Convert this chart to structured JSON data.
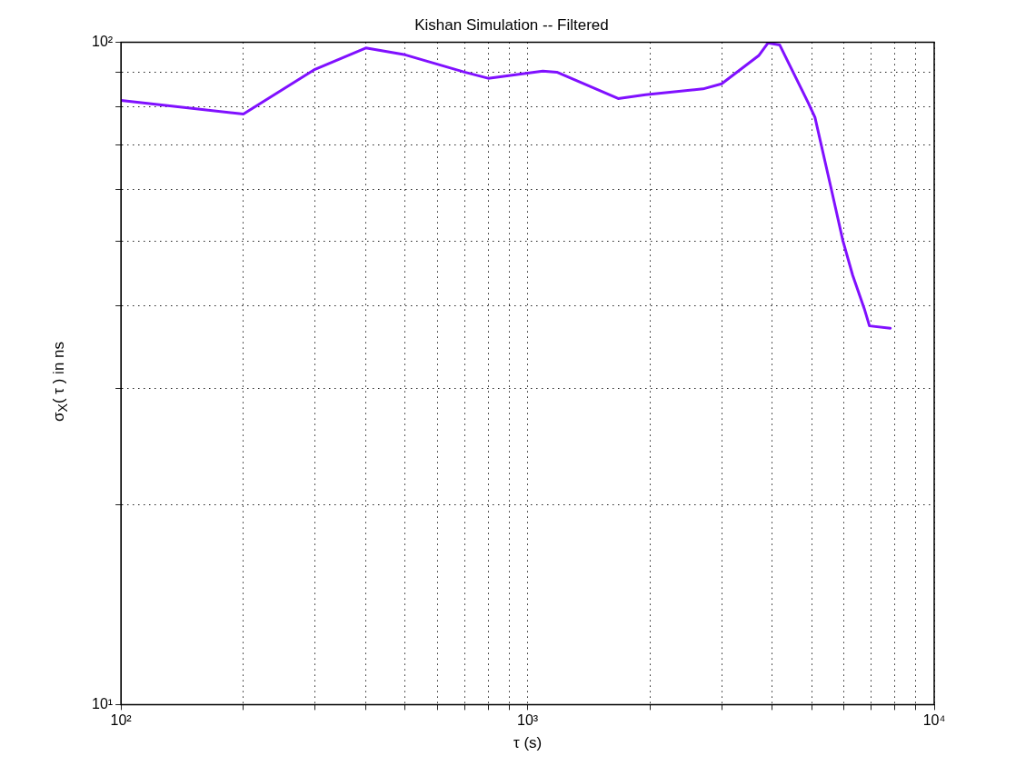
{
  "chart_data": {
    "type": "line",
    "title": "Kishan Simulation -- Filtered",
    "xlabel": "τ (s)",
    "ylabel": "σ$_{X}$( τ ) in ns",
    "log": "xy",
    "grid": true,
    "marker": "none",
    "line_style": "solid",
    "xlim": [
      100,
      10000
    ],
    "ylim": [
      10,
      100
    ],
    "xticks": [
      {
        "value": 100,
        "label": "10²"
      },
      {
        "value": 200,
        "label": null
      },
      {
        "value": 300,
        "label": null
      },
      {
        "value": 400,
        "label": null
      },
      {
        "value": 500,
        "label": null
      },
      {
        "value": 600,
        "label": null
      },
      {
        "value": 700,
        "label": null
      },
      {
        "value": 800,
        "label": null
      },
      {
        "value": 900,
        "label": null
      },
      {
        "value": 1000,
        "label": "10³"
      },
      {
        "value": 2000,
        "label": null
      },
      {
        "value": 3000,
        "label": null
      },
      {
        "value": 4000,
        "label": null
      },
      {
        "value": 5000,
        "label": null
      },
      {
        "value": 6000,
        "label": null
      },
      {
        "value": 7000,
        "label": null
      },
      {
        "value": 8000,
        "label": null
      },
      {
        "value": 9000,
        "label": null
      },
      {
        "value": 10000,
        "label": "10⁴"
      }
    ],
    "yticks": [
      {
        "value": 10,
        "label": "10¹"
      },
      {
        "value": 20,
        "label": null
      },
      {
        "value": 30,
        "label": null
      },
      {
        "value": 40,
        "label": null
      },
      {
        "value": 50,
        "label": null
      },
      {
        "value": 60,
        "label": null
      },
      {
        "value": 70,
        "label": null
      },
      {
        "value": 80,
        "label": null
      },
      {
        "value": 90,
        "label": null
      },
      {
        "value": 100,
        "label": "10²"
      }
    ],
    "series": [
      {
        "color": "#8010ff",
        "x": [
          100,
          200,
          300,
          400,
          500,
          700,
          800,
          1090,
          1180,
          1670,
          1950,
          2700,
          3000,
          3700,
          3900,
          4170,
          4900,
          5090,
          5570,
          5960,
          6300,
          6730,
          6930,
          7800
        ],
        "values": [
          81.7,
          77.9,
          91.0,
          98.0,
          95.7,
          90.1,
          88.2,
          90.4,
          90.1,
          82.2,
          83.3,
          85.0,
          86.5,
          95.4,
          99.7,
          99.0,
          81,
          77,
          60.4,
          50.2,
          44.5,
          39.6,
          37.3,
          37.0
        ]
      }
    ]
  }
}
